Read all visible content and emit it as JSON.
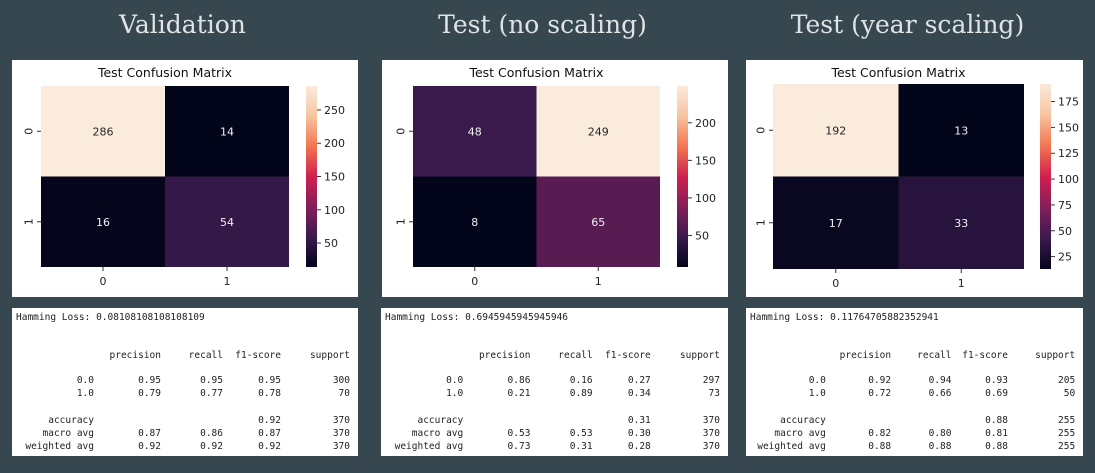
{
  "panels": [
    {
      "heading": "Validation",
      "hamming_loss_text": "Hamming Loss: 0.08108108108108109",
      "report": {
        "headers": [
          "precision",
          "recall",
          "f1-score",
          "support"
        ],
        "rows": [
          {
            "label": "0.0",
            "values": [
              "0.95",
              "0.95",
              "0.95",
              "300"
            ]
          },
          {
            "label": "1.0",
            "values": [
              "0.79",
              "0.77",
              "0.78",
              "70"
            ]
          }
        ],
        "summary": [
          {
            "label": "accuracy",
            "values": [
              "",
              "",
              "0.92",
              "370"
            ]
          },
          {
            "label": "macro avg",
            "values": [
              "0.87",
              "0.86",
              "0.87",
              "370"
            ]
          },
          {
            "label": "weighted avg",
            "values": [
              "0.92",
              "0.92",
              "0.92",
              "370"
            ]
          }
        ]
      }
    },
    {
      "heading": "Test (no scaling)",
      "hamming_loss_text": "Hamming Loss: 0.6945945945945946",
      "report": {
        "headers": [
          "precision",
          "recall",
          "f1-score",
          "support"
        ],
        "rows": [
          {
            "label": "0.0",
            "values": [
              "0.86",
              "0.16",
              "0.27",
              "297"
            ]
          },
          {
            "label": "1.0",
            "values": [
              "0.21",
              "0.89",
              "0.34",
              "73"
            ]
          }
        ],
        "summary": [
          {
            "label": "accuracy",
            "values": [
              "",
              "",
              "0.31",
              "370"
            ]
          },
          {
            "label": "macro avg",
            "values": [
              "0.53",
              "0.53",
              "0.30",
              "370"
            ]
          },
          {
            "label": "weighted avg",
            "values": [
              "0.73",
              "0.31",
              "0.28",
              "370"
            ]
          }
        ]
      }
    },
    {
      "heading": "Test (year scaling)",
      "hamming_loss_text": "Hamming Loss: 0.11764705882352941",
      "report": {
        "headers": [
          "precision",
          "recall",
          "f1-score",
          "support"
        ],
        "rows": [
          {
            "label": "0.0",
            "values": [
              "0.92",
              "0.94",
              "0.93",
              "205"
            ]
          },
          {
            "label": "1.0",
            "values": [
              "0.72",
              "0.66",
              "0.69",
              "50"
            ]
          }
        ],
        "summary": [
          {
            "label": "accuracy",
            "values": [
              "",
              "",
              "0.88",
              "255"
            ]
          },
          {
            "label": "macro avg",
            "values": [
              "0.82",
              "0.80",
              "0.81",
              "255"
            ]
          },
          {
            "label": "weighted avg",
            "values": [
              "0.88",
              "0.88",
              "0.88",
              "255"
            ]
          }
        ]
      }
    }
  ],
  "chart_data": [
    {
      "type": "heatmap",
      "title": "Test Confusion Matrix",
      "x_categories": [
        "0",
        "1"
      ],
      "y_categories": [
        "0",
        "1"
      ],
      "values": [
        [
          286,
          14
        ],
        [
          16,
          54
        ]
      ],
      "colormap": "rocket",
      "colorbar_range": [
        14,
        286
      ],
      "colorbar_ticks": [
        50,
        100,
        150,
        200,
        250
      ]
    },
    {
      "type": "heatmap",
      "title": "Test Confusion Matrix",
      "x_categories": [
        "0",
        "1"
      ],
      "y_categories": [
        "0",
        "1"
      ],
      "values": [
        [
          48,
          249
        ],
        [
          8,
          65
        ]
      ],
      "colormap": "rocket",
      "colorbar_range": [
        8,
        249
      ],
      "colorbar_ticks": [
        50,
        100,
        150,
        200
      ]
    },
    {
      "type": "heatmap",
      "title": "Test Confusion Matrix",
      "x_categories": [
        "0",
        "1"
      ],
      "y_categories": [
        "0",
        "1"
      ],
      "values": [
        [
          192,
          13
        ],
        [
          17,
          33
        ]
      ],
      "colormap": "rocket",
      "colorbar_range": [
        13,
        192
      ],
      "colorbar_ticks": [
        25,
        50,
        75,
        100,
        125,
        150,
        175
      ]
    }
  ],
  "colors": {
    "page_background": "#37474f",
    "heading_text": "#dfe3e4",
    "colormap_stops": [
      "#03051a",
      "#3a1a4d",
      "#841e5a",
      "#d0204f",
      "#f37651",
      "#f6c49f",
      "#faebdd"
    ]
  }
}
